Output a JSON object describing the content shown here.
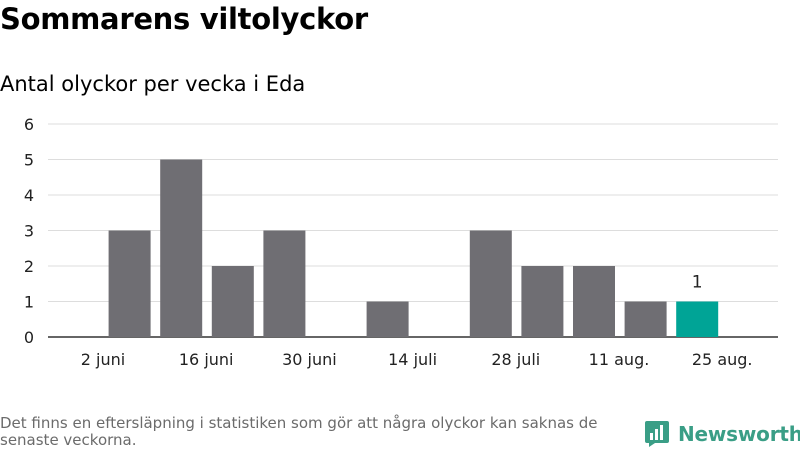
{
  "header": {
    "title": "Sommarens viltolyckor",
    "subtitle": "Antal olyckor per vecka i Eda"
  },
  "chart_data": {
    "type": "bar",
    "categories": [
      "w1",
      "w2",
      "w3",
      "w4",
      "w5",
      "w6",
      "w7",
      "w8",
      "w9",
      "w10",
      "w11",
      "w12",
      "w13"
    ],
    "values": [
      0,
      3,
      5,
      2,
      3,
      0,
      1,
      0,
      3,
      2,
      2,
      1,
      1
    ],
    "x_tick_labels": [
      {
        "index": 0,
        "label": "2 juni"
      },
      {
        "index": 2,
        "label": "16 juni"
      },
      {
        "index": 4,
        "label": "30 juni"
      },
      {
        "index": 6,
        "label": "14 juli"
      },
      {
        "index": 8,
        "label": "28 juli"
      },
      {
        "index": 10,
        "label": "11 aug."
      },
      {
        "index": 12,
        "label": "25 aug."
      }
    ],
    "y_ticks": [
      0,
      1,
      2,
      3,
      4,
      5,
      6
    ],
    "ylim": [
      0,
      6
    ],
    "grid": true,
    "bar_color": "#6f6e73",
    "highlight_index": 12,
    "highlight_color": "#00a496",
    "highlight_label": "1",
    "title": "Sommarens viltolyckor",
    "subtitle": "Antal olyckor per vecka i Eda"
  },
  "footer": {
    "note": "Det finns en eftersläpning i statistiken som gör att några olyckor kan saknas de senaste veckorna.",
    "brand": "Newsworthy",
    "brand_color": "#3a9e86",
    "brand_icon": "bar-chart-icon"
  }
}
